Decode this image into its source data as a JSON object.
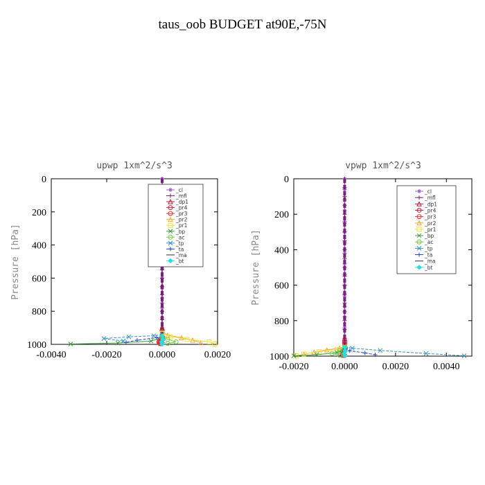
{
  "title": "taus_oob  BUDGET at90E,-75N",
  "colors": {
    "cl": "#9b59d0",
    "mfl": "#7b1f7b",
    "dp1": "#c0143c",
    "pr4": "#d01f3c",
    "pr3": "#e83030",
    "pr2": "#f0a830",
    "pr1": "#f0e040",
    "bp": "#3a9a3a",
    "ac": "#70d040",
    "tp": "#3090c8",
    "ta": "#2040d0",
    "ma": "#303030",
    "bt": "#20e0e0"
  },
  "chart_data": [
    {
      "type": "line",
      "title": "upwp   1xm^2/s^3",
      "ylabel": "Pressure [hPa]",
      "xlabel": "",
      "xlim": [
        -0.004,
        0.002
      ],
      "ylim": [
        1000,
        0
      ],
      "y_inverted": true,
      "xticks": [
        -0.004,
        -0.002,
        0.0,
        0.002
      ],
      "xtick_labels": [
        "-0.0040",
        "-0.0020",
        "0.0000",
        "0.0020"
      ],
      "yticks": [
        0,
        200,
        400,
        600,
        800,
        1000
      ],
      "ytick_labels": [
        "0",
        "200",
        "400",
        "600",
        "800",
        "1000"
      ],
      "legend_position": "top-right",
      "legend": [
        "_cl",
        "_mfl",
        "_dp1",
        "_pr4",
        "_pr3",
        "_pr2",
        "_pr1",
        "_bp",
        "_ac",
        "_tp",
        "_ta",
        "_ma",
        "_bt"
      ],
      "series": [
        {
          "name": "_cl",
          "color_key": "cl",
          "x": [
            0,
            0,
            0,
            0,
            0,
            0,
            0,
            0,
            0,
            0,
            0,
            0,
            0,
            0,
            0,
            0,
            3e-05,
            5e-05,
            2e-05
          ],
          "y": [
            0,
            60,
            120,
            180,
            240,
            300,
            360,
            420,
            480,
            540,
            600,
            660,
            720,
            780,
            840,
            900,
            940,
            970,
            990
          ]
        },
        {
          "name": "_mfl",
          "color_key": "mfl",
          "x": [
            0,
            0,
            0,
            0,
            0,
            0,
            0,
            0,
            0,
            0,
            0,
            0,
            0,
            0,
            0,
            0,
            0,
            0,
            0,
            0
          ],
          "y": [
            0,
            50,
            100,
            150,
            200,
            250,
            300,
            350,
            400,
            450,
            500,
            550,
            600,
            650,
            700,
            750,
            800,
            850,
            900,
            1000
          ]
        },
        {
          "name": "_dp1",
          "color_key": "dp1",
          "x": [
            0,
            0,
            -5e-05,
            -0.0001,
            -5e-05
          ],
          "y": [
            900,
            940,
            965,
            985,
            995
          ]
        },
        {
          "name": "_pr4",
          "color_key": "pr4",
          "x": [
            0,
            0,
            -8e-05,
            -0.00012,
            -6e-05
          ],
          "y": [
            920,
            950,
            970,
            985,
            995
          ]
        },
        {
          "name": "_pr3",
          "color_key": "pr3",
          "x": [
            0,
            2e-05,
            -6e-05,
            -0.0001,
            -4e-05
          ],
          "y": [
            930,
            955,
            975,
            988,
            996
          ]
        },
        {
          "name": "_pr2",
          "color_key": "pr2",
          "x": [
            0,
            0.0002,
            0.0007,
            0.0011,
            0.0014
          ],
          "y": [
            920,
            945,
            960,
            975,
            990
          ]
        },
        {
          "name": "_pr1",
          "color_key": "pr1",
          "x": [
            0,
            0.0003,
            0.0009,
            0.0017,
            0.0019
          ],
          "y": [
            935,
            955,
            970,
            985,
            998
          ]
        },
        {
          "name": "_bp",
          "color_key": "bp",
          "x": [
            0,
            -0.0004,
            -0.0016,
            -0.0033
          ],
          "y": [
            960,
            980,
            992,
            998
          ]
        },
        {
          "name": "_ac",
          "color_key": "ac",
          "x": [
            0,
            0.0002,
            0.0005,
            0.0002
          ],
          "y": [
            955,
            970,
            985,
            995
          ]
        },
        {
          "name": "_tp",
          "color_key": "tp",
          "x": [
            0,
            -0.0003,
            -0.0012,
            -0.0021,
            -0.0014
          ],
          "y": [
            940,
            948,
            955,
            965,
            980
          ]
        },
        {
          "name": "_ta",
          "color_key": "ta",
          "x": [
            0,
            -0.0002,
            -0.0009,
            -0.0013
          ],
          "y": [
            950,
            960,
            975,
            988
          ]
        },
        {
          "name": "_ma",
          "color_key": "ma",
          "x": [
            0,
            0,
            0,
            0,
            0
          ],
          "y": [
            900,
            940,
            970,
            990,
            1000
          ]
        },
        {
          "name": "_bt",
          "color_key": "bt",
          "x": [
            0,
            2e-05,
            -2e-05,
            0
          ],
          "y": [
            950,
            970,
            985,
            998
          ]
        }
      ]
    },
    {
      "type": "line",
      "title": "vpwp   1xm^2/s^3",
      "ylabel": "Pressure [hPa]",
      "xlabel": "",
      "xlim": [
        -0.002,
        0.005
      ],
      "ylim": [
        1000,
        0
      ],
      "y_inverted": true,
      "xticks": [
        -0.002,
        0.0,
        0.002,
        0.004
      ],
      "xtick_labels": [
        "-0.0020",
        "0.0000",
        "0.0020",
        "0.0040"
      ],
      "yticks": [
        0,
        200,
        400,
        600,
        800,
        1000
      ],
      "ytick_labels": [
        "0",
        "200",
        "400",
        "600",
        "800",
        "1000"
      ],
      "legend_position": "top-right",
      "legend": [
        "_cl",
        "_mfl",
        "_dp1",
        "_pr4",
        "_pr3",
        "_pr2",
        "_pr1",
        "_bp",
        "_ac",
        "_tp",
        "_ta",
        "_ma",
        "_bt"
      ],
      "series": [
        {
          "name": "_cl",
          "color_key": "cl",
          "x": [
            0,
            0,
            0,
            0,
            0,
            0,
            0,
            0,
            0,
            0,
            0,
            0,
            0,
            0,
            0,
            0,
            2e-05,
            4e-05,
            1e-05
          ],
          "y": [
            0,
            60,
            120,
            180,
            240,
            300,
            360,
            420,
            480,
            540,
            600,
            660,
            720,
            780,
            840,
            900,
            940,
            970,
            990
          ]
        },
        {
          "name": "_mfl",
          "color_key": "mfl",
          "x": [
            0,
            0,
            0,
            0,
            0,
            0,
            0,
            0,
            0,
            0,
            0,
            0,
            0,
            0,
            0,
            0,
            0,
            0,
            0,
            0
          ],
          "y": [
            0,
            50,
            100,
            150,
            200,
            250,
            300,
            350,
            400,
            450,
            500,
            550,
            600,
            650,
            700,
            750,
            800,
            850,
            900,
            1000
          ]
        },
        {
          "name": "_dp1",
          "color_key": "dp1",
          "x": [
            0,
            0,
            -6e-05,
            -0.0001,
            -4e-05
          ],
          "y": [
            900,
            940,
            965,
            985,
            995
          ]
        },
        {
          "name": "_pr4",
          "color_key": "pr4",
          "x": [
            0,
            2e-05,
            -8e-05,
            -0.0001,
            -5e-05
          ],
          "y": [
            920,
            950,
            970,
            985,
            995
          ]
        },
        {
          "name": "_pr3",
          "color_key": "pr3",
          "x": [
            0,
            3e-05,
            -5e-05,
            -8e-05,
            -3e-05
          ],
          "y": [
            930,
            955,
            975,
            988,
            996
          ]
        },
        {
          "name": "_pr2",
          "color_key": "pr2",
          "x": [
            0,
            -0.0002,
            -0.0007,
            -0.0012,
            -0.0016
          ],
          "y": [
            945,
            955,
            965,
            978,
            990
          ]
        },
        {
          "name": "_pr1",
          "color_key": "pr1",
          "x": [
            0,
            -0.0003,
            -0.001,
            -0.0016,
            -0.0019
          ],
          "y": [
            950,
            962,
            975,
            988,
            998
          ]
        },
        {
          "name": "_bp",
          "color_key": "bp",
          "x": [
            0,
            -0.0003,
            -0.0011,
            -0.002
          ],
          "y": [
            965,
            980,
            992,
            998
          ]
        },
        {
          "name": "_ac",
          "color_key": "ac",
          "x": [
            0,
            -0.0002,
            -0.0005,
            -0.0002
          ],
          "y": [
            955,
            970,
            985,
            995
          ]
        },
        {
          "name": "_tp",
          "color_key": "tp",
          "x": [
            0,
            0.0003,
            0.0014,
            0.0032,
            0.0047
          ],
          "y": [
            950,
            955,
            968,
            985,
            998
          ]
        },
        {
          "name": "_ta",
          "color_key": "ta",
          "x": [
            0,
            0.0002,
            0.0008,
            0.0012
          ],
          "y": [
            960,
            970,
            982,
            992
          ]
        },
        {
          "name": "_ma",
          "color_key": "ma",
          "x": [
            0,
            0,
            0,
            0,
            0
          ],
          "y": [
            900,
            940,
            970,
            990,
            1000
          ]
        },
        {
          "name": "_bt",
          "color_key": "bt",
          "x": [
            0,
            2e-05,
            -2e-05,
            0
          ],
          "y": [
            950,
            970,
            985,
            998
          ]
        }
      ]
    }
  ]
}
